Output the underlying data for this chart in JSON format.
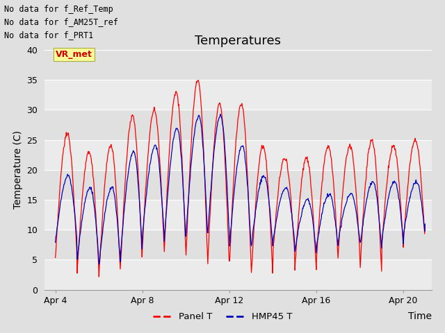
{
  "title": "Temperatures",
  "xlabel": "Time",
  "ylabel": "Temperature (C)",
  "xlim": [
    3.5,
    21.3
  ],
  "ylim": [
    0,
    40
  ],
  "yticks": [
    0,
    5,
    10,
    15,
    20,
    25,
    30,
    35,
    40
  ],
  "xtick_labels": [
    "Apr 4",
    "Apr 8",
    "Apr 12",
    "Apr 16",
    "Apr 20"
  ],
  "xtick_positions": [
    4,
    8,
    12,
    16,
    20
  ],
  "fig_bg_color": "#e0e0e0",
  "plot_bg_color": "#e0e0e0",
  "band_color_dark": "#d0d0d0",
  "band_color_light": "#e8e8e8",
  "grid_color": "#ffffff",
  "annotations": [
    "No data for f_Ref_Temp",
    "No data for f_AM25T_ref",
    "No data for f_PRT1"
  ],
  "vr_met_label": "VR_met",
  "legend": [
    {
      "label": "Panel T",
      "color": "#ff0000"
    },
    {
      "label": "HMP45 T",
      "color": "#0000bb"
    }
  ],
  "panel_t_color": "#ff0000",
  "hmp45_color": "#0000bb",
  "title_fontsize": 13,
  "axis_label_fontsize": 10,
  "tick_fontsize": 9,
  "annotation_fontsize": 8.5
}
